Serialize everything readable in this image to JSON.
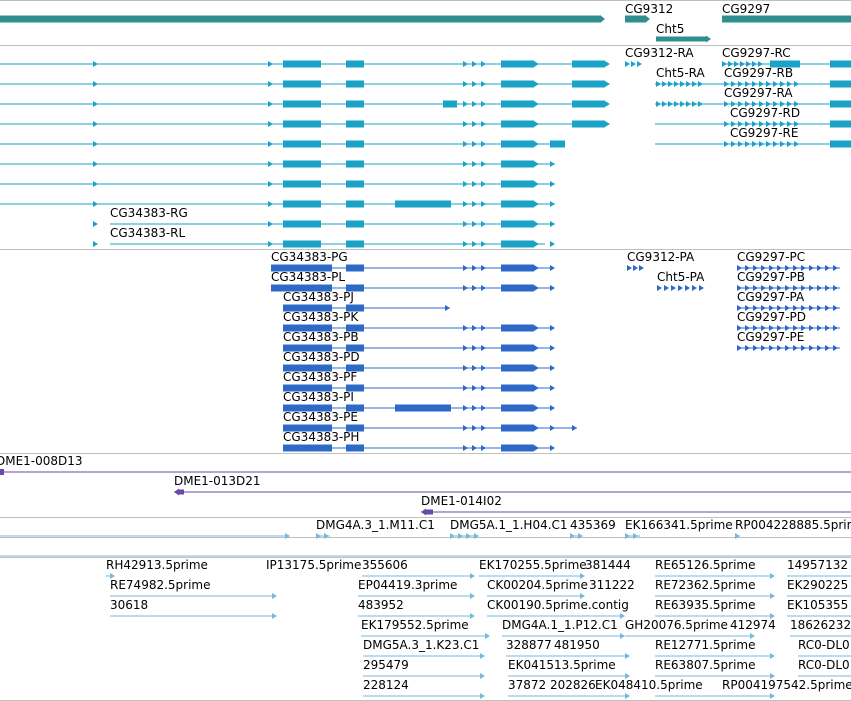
{
  "colors": {
    "background": "#ffffff",
    "separator": "#bfbfbf",
    "gene": "#2f8f8f",
    "transcript": "#1aa3c7",
    "protein": "#2e68c9",
    "clone": "#6a4aa8",
    "est": "#77b9dc",
    "label": "#000000"
  },
  "tracks": {
    "genes": {
      "labels": [
        {
          "id": "cg9312",
          "text": "CG9312"
        },
        {
          "id": "cg9297",
          "text": "CG9297"
        },
        {
          "id": "cht5",
          "text": "Cht5"
        }
      ]
    },
    "transcripts": {
      "labels": [
        {
          "id": "cg9312-ra",
          "text": "CG9312-RA"
        },
        {
          "id": "cg9297-rc",
          "text": "CG9297-RC"
        },
        {
          "id": "cht5-ra",
          "text": "Cht5-RA"
        },
        {
          "id": "cg9297-rb",
          "text": "CG9297-RB"
        },
        {
          "id": "cg9297-ra",
          "text": "CG9297-RA"
        },
        {
          "id": "cg9297-rd",
          "text": "CG9297-RD"
        },
        {
          "id": "cg9297-re",
          "text": "CG9297-RE"
        },
        {
          "id": "cg34383-rg",
          "text": "CG34383-RG"
        },
        {
          "id": "cg34383-rl",
          "text": "CG34383-RL"
        }
      ]
    },
    "proteins": {
      "labels": [
        {
          "id": "cg34383-pg",
          "text": "CG34383-PG"
        },
        {
          "id": "cg9312-pa",
          "text": "CG9312-PA"
        },
        {
          "id": "cg9297-pc",
          "text": "CG9297-PC"
        },
        {
          "id": "cg34383-pl",
          "text": "CG34383-PL"
        },
        {
          "id": "cht5-pa",
          "text": "Cht5-PA"
        },
        {
          "id": "cg9297-pb",
          "text": "CG9297-PB"
        },
        {
          "id": "cg34383-pj",
          "text": "CG34383-PJ"
        },
        {
          "id": "cg9297-pa",
          "text": "CG9297-PA"
        },
        {
          "id": "cg34383-pk",
          "text": "CG34383-PK"
        },
        {
          "id": "cg9297-pd",
          "text": "CG9297-PD"
        },
        {
          "id": "cg34383-pb",
          "text": "CG34383-PB"
        },
        {
          "id": "cg9297-pe",
          "text": "CG9297-PE"
        },
        {
          "id": "cg34383-pd",
          "text": "CG34383-PD"
        },
        {
          "id": "cg34383-pf",
          "text": "CG34383-PF"
        },
        {
          "id": "cg34383-pi",
          "text": "CG34383-PI"
        },
        {
          "id": "cg34383-pe",
          "text": "CG34383-PE"
        },
        {
          "id": "cg34383-ph",
          "text": "CG34383-PH"
        }
      ]
    },
    "clones": {
      "labels": [
        {
          "id": "dme1-008d13",
          "text": "DME1-008D13"
        },
        {
          "id": "dme1-013d21",
          "text": "DME1-013D21"
        },
        {
          "id": "dme1-014i02",
          "text": "DME1-014I02"
        }
      ]
    },
    "ests": {
      "labels": [
        {
          "id": "dmg4a3-m11",
          "text": "DMG4A.3_1.M11.C1"
        },
        {
          "id": "dmg5a1-h04",
          "text": "DMG5A.1_1.H04.C1"
        },
        {
          "id": "n435369",
          "text": "435369"
        },
        {
          "id": "ek166341",
          "text": "EK166341.5prime"
        },
        {
          "id": "rp004228885",
          "text": "RP004228885.5prime"
        },
        {
          "id": "rh42913",
          "text": "RH42913.5prime"
        },
        {
          "id": "ip13175",
          "text": "IP13175.5prime"
        },
        {
          "id": "n355606",
          "text": "355606"
        },
        {
          "id": "ek170255",
          "text": "EK170255.5prime"
        },
        {
          "id": "n381444",
          "text": "381444"
        },
        {
          "id": "re65126",
          "text": "RE65126.5prime"
        },
        {
          "id": "n14957132",
          "text": "14957132"
        },
        {
          "id": "re74982",
          "text": "RE74982.5prime"
        },
        {
          "id": "ep04419",
          "text": "EP04419.3prime"
        },
        {
          "id": "ck00204",
          "text": "CK00204.5prime"
        },
        {
          "id": "n311222",
          "text": "311222"
        },
        {
          "id": "re72362",
          "text": "RE72362.5prime"
        },
        {
          "id": "ek290225",
          "text": "EK290225"
        },
        {
          "id": "n30618",
          "text": "30618"
        },
        {
          "id": "n483952",
          "text": "483952"
        },
        {
          "id": "ck00190",
          "text": "CK00190.5prime.contig"
        },
        {
          "id": "re63935",
          "text": "RE63935.5prime"
        },
        {
          "id": "ek105355",
          "text": "EK105355"
        },
        {
          "id": "ek179552",
          "text": "EK179552.5prime"
        },
        {
          "id": "dmg4a1-p12",
          "text": "DMG4A.1_1.P12.C1"
        },
        {
          "id": "gh20076",
          "text": "GH20076.5prime"
        },
        {
          "id": "n412974",
          "text": "412974"
        },
        {
          "id": "n18626232",
          "text": "18626232"
        },
        {
          "id": "dmg5a3-k23",
          "text": "DMG5A.3_1.K23.C1"
        },
        {
          "id": "n328877",
          "text": "328877"
        },
        {
          "id": "n481950",
          "text": "481950"
        },
        {
          "id": "re12771",
          "text": "RE12771.5prime"
        },
        {
          "id": "rc0-dl0-a",
          "text": "RC0-DL0"
        },
        {
          "id": "n295479",
          "text": "295479"
        },
        {
          "id": "ek041513",
          "text": "EK041513.5prime"
        },
        {
          "id": "re63807",
          "text": "RE63807.5prime"
        },
        {
          "id": "rc0-dl0-b",
          "text": "RC0-DL0"
        },
        {
          "id": "n228124",
          "text": "228124"
        },
        {
          "id": "n37872",
          "text": "37872"
        },
        {
          "id": "n202826",
          "text": "202826"
        },
        {
          "id": "ek048410",
          "text": "EK048410.5prime"
        },
        {
          "id": "rp004197542",
          "text": "RP004197542.5prime"
        }
      ]
    }
  }
}
